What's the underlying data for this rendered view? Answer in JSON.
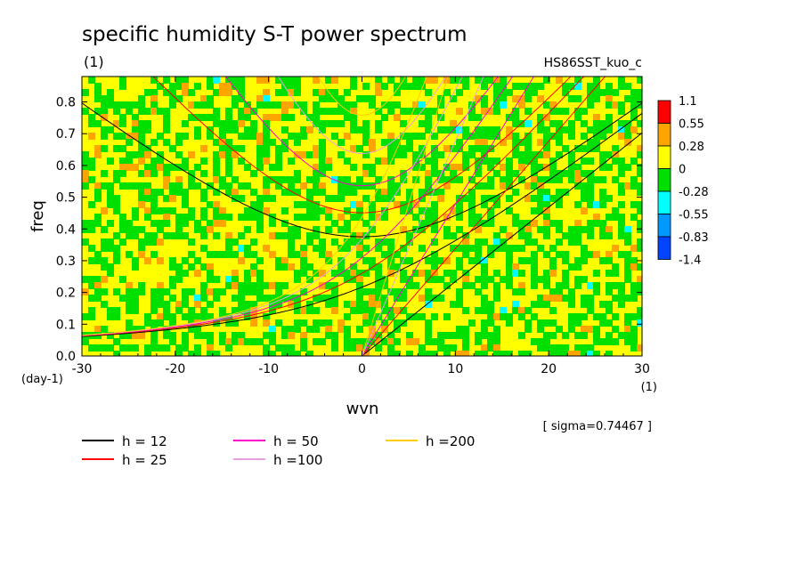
{
  "chart_data": {
    "type": "heatmap",
    "title": "specific humidity S-T power spectrum",
    "units_label": "(1)",
    "case_label": "HS86SST_kuo_c",
    "xlabel": "wvn",
    "x_units": "(1)",
    "ylabel": "freq",
    "y_units": "(day-1)",
    "xlim": [
      -30,
      30
    ],
    "ylim": [
      0,
      0.88
    ],
    "x_ticks": [
      -30,
      -20,
      -10,
      0,
      10,
      20,
      30
    ],
    "y_ticks": [
      0.0,
      0.1,
      0.2,
      0.3,
      0.4,
      0.5,
      0.6,
      0.7,
      0.8
    ],
    "sigma_note": "[ sigma=0.74467 ]",
    "colorbar": {
      "levels": [
        "1.1",
        "0.55",
        "0.28",
        "0",
        "-0.28",
        "-0.55",
        "-0.83",
        "-1.4"
      ],
      "colors": [
        "#ff0000",
        "#ffa500",
        "#ffff00",
        "#00e000",
        "#00ffff",
        "#0099ff",
        "#0044ff"
      ]
    },
    "dispersion_curves": [
      {
        "name": "h = 12",
        "color": "#000000",
        "h": 12
      },
      {
        "name": "h = 25",
        "color": "#ff0000",
        "h": 25
      },
      {
        "name": "h = 50",
        "color": "#ff00cc",
        "h": 50
      },
      {
        "name": "h =100",
        "color": "#e8a0e0",
        "h": 100
      },
      {
        "name": "h =200",
        "color": "#ffcc00",
        "h": 200
      }
    ]
  }
}
